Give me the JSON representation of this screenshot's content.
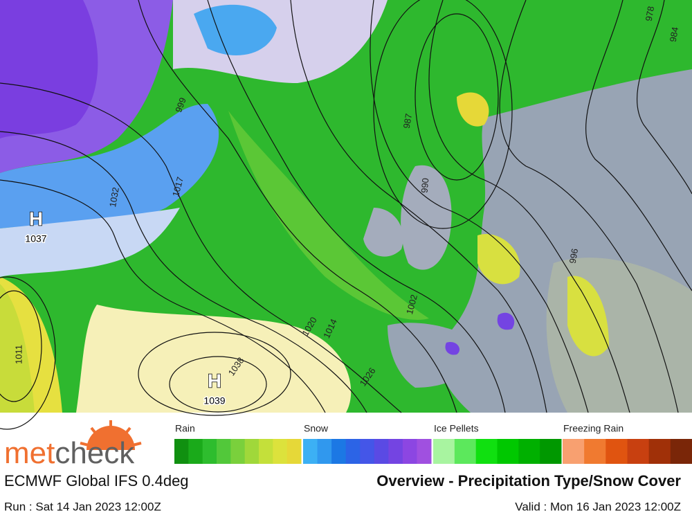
{
  "map": {
    "highs": [
      {
        "symbol": "H",
        "pressure": "1037"
      },
      {
        "symbol": "H",
        "pressure": "1039"
      }
    ],
    "isobar_labels": [
      "999",
      "1017",
      "1032",
      "987",
      "990",
      "996",
      "1002",
      "1014",
      "1020",
      "1026",
      "1038",
      "1011",
      "978",
      "984"
    ]
  },
  "legend": [
    {
      "label": "Rain",
      "colors": [
        "#109010",
        "#1aaa1a",
        "#2ebd2e",
        "#52c83a",
        "#7ad03c",
        "#a0d83a",
        "#c4e03a",
        "#dce23c",
        "#e6d838"
      ]
    },
    {
      "label": "Snow",
      "colors": [
        "#3cb0f4",
        "#3098ee",
        "#1c78e4",
        "#2c64e6",
        "#4456e8",
        "#5a4ae4",
        "#7444e2",
        "#8c46e2",
        "#a050e0"
      ]
    },
    {
      "label": "Ice Pellets",
      "colors": [
        "#a8f4a0",
        "#5ce85c",
        "#10e010",
        "#00c800",
        "#00b000",
        "#009800"
      ]
    },
    {
      "label": "Freezing Rain",
      "colors": [
        "#f8a070",
        "#f07a30",
        "#e05410",
        "#c84010",
        "#a03008",
        "#7a2608"
      ]
    }
  ],
  "footer": {
    "logo": [
      "met",
      "check"
    ],
    "model": "ECMWF Global IFS 0.4deg",
    "title": "Overview - Precipitation Type/Snow Cover",
    "run": "Run : Sat 14 Jan 2023 12:00Z",
    "valid": "Valid : Mon 16 Jan 2023 12:00Z"
  }
}
